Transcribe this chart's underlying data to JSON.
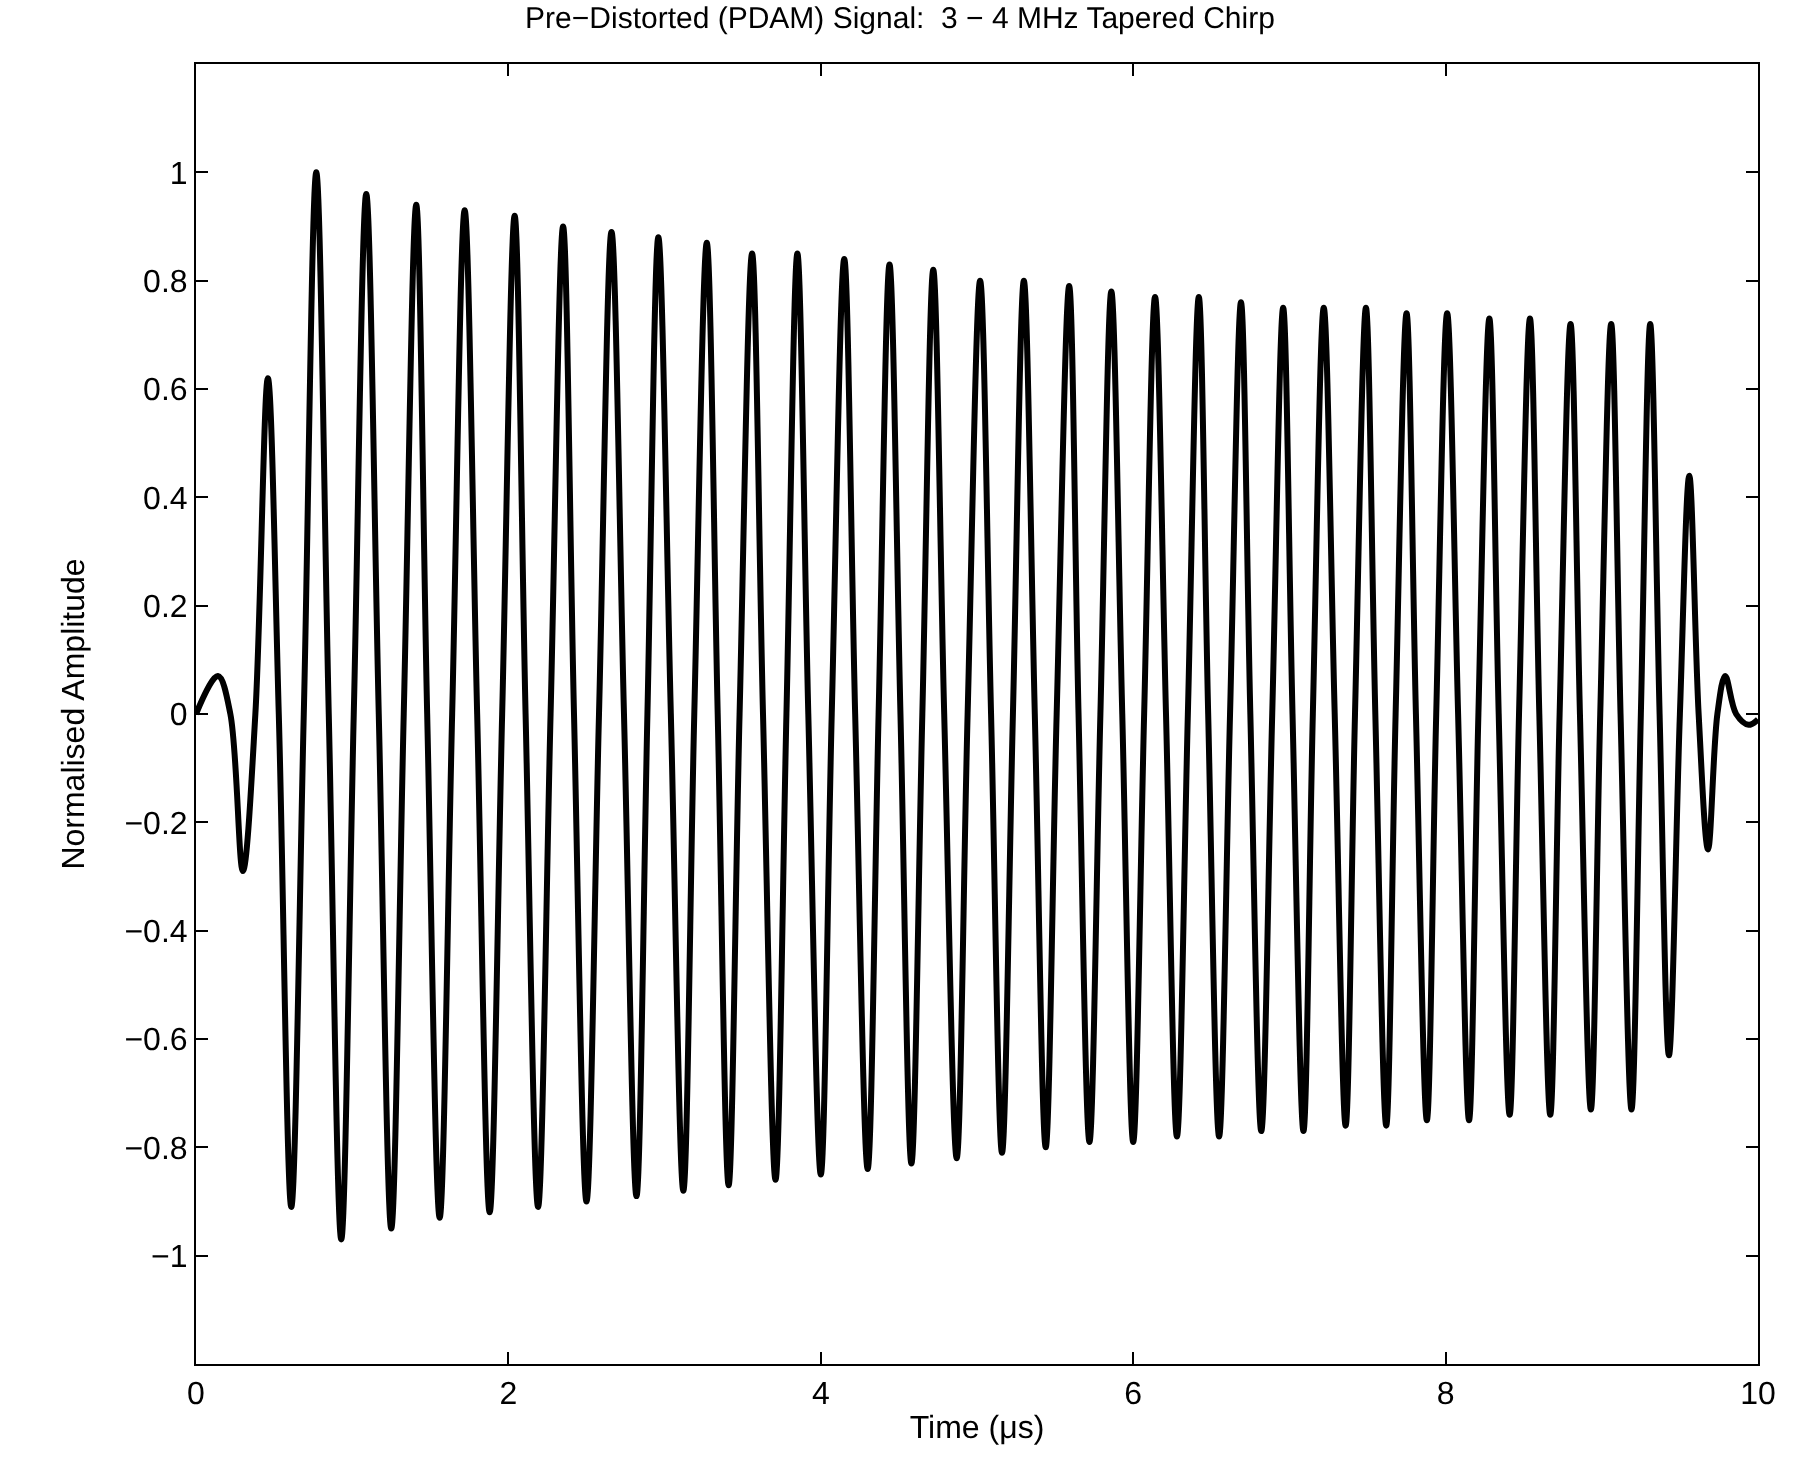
{
  "chart_data": {
    "type": "line",
    "title": "Pre−Distorted (PDAM) Signal:  3 − 4 MHz Tapered Chirp",
    "xlabel": "Time (μs)",
    "ylabel": "Normalised Amplitude",
    "x": [
      0,
      0.14,
      0.22,
      0.3,
      0.38,
      0.46,
      0.53,
      0.61,
      0.69,
      0.77,
      0.85,
      0.93,
      1.01,
      1.09,
      1.17,
      1.25,
      1.33,
      1.41,
      1.48,
      1.56,
      1.64,
      1.72,
      1.8,
      1.88,
      1.96,
      2.04,
      2.11,
      2.19,
      2.27,
      2.35,
      2.42,
      2.5,
      2.58,
      2.66,
      2.74,
      2.82,
      2.89,
      2.96,
      3.04,
      3.12,
      3.19,
      3.27,
      3.34,
      3.41,
      3.48,
      3.56,
      3.63,
      3.71,
      3.78,
      3.85,
      3.92,
      4.0,
      4.07,
      4.15,
      4.22,
      4.3,
      4.37,
      4.44,
      4.51,
      4.58,
      4.65,
      4.72,
      4.79,
      4.87,
      4.94,
      5.02,
      5.09,
      5.16,
      5.23,
      5.3,
      5.37,
      5.44,
      5.51,
      5.59,
      5.65,
      5.72,
      5.79,
      5.86,
      5.93,
      6.0,
      6.07,
      6.14,
      6.21,
      6.28,
      6.35,
      6.42,
      6.48,
      6.55,
      6.62,
      6.69,
      6.75,
      6.82,
      6.89,
      6.96,
      7.02,
      7.09,
      7.15,
      7.22,
      7.29,
      7.36,
      7.42,
      7.49,
      7.55,
      7.62,
      7.68,
      7.75,
      7.81,
      7.88,
      7.94,
      8.01,
      8.08,
      8.15,
      8.21,
      8.28,
      8.34,
      8.41,
      8.47,
      8.54,
      8.6,
      8.67,
      8.73,
      8.8,
      8.86,
      8.93,
      8.99,
      9.06,
      9.12,
      9.19,
      9.25,
      9.31,
      9.37,
      9.43,
      9.5,
      9.56,
      9.62,
      9.68,
      9.74,
      9.79,
      9.86,
      9.94,
      10
    ],
    "series": [
      {
        "color": "#000000",
        "values": [
          0,
          0.07,
          0,
          -0.29,
          0,
          0.62,
          0,
          -0.91,
          0,
          1.0,
          0,
          -0.97,
          0,
          0.96,
          0,
          -0.95,
          0,
          0.94,
          0,
          -0.93,
          0,
          0.93,
          0,
          -0.92,
          0,
          0.92,
          0,
          -0.91,
          0,
          0.9,
          0,
          -0.9,
          0,
          0.89,
          0,
          -0.89,
          0,
          0.88,
          0,
          -0.88,
          0,
          0.87,
          0,
          -0.87,
          0,
          0.85,
          0,
          -0.86,
          0,
          0.85,
          0,
          -0.85,
          0,
          0.84,
          0,
          -0.84,
          0,
          0.83,
          0,
          -0.83,
          0,
          0.82,
          0,
          -0.82,
          0,
          0.8,
          0,
          -0.81,
          0,
          0.8,
          0,
          -0.8,
          0,
          0.79,
          0,
          -0.79,
          0,
          0.78,
          0,
          -0.79,
          0,
          0.77,
          0,
          -0.78,
          0,
          0.77,
          0,
          -0.78,
          0,
          0.76,
          0,
          -0.77,
          0,
          0.75,
          0,
          -0.77,
          0,
          0.75,
          0,
          -0.76,
          0,
          0.75,
          0,
          -0.76,
          0,
          0.74,
          0,
          -0.75,
          0,
          0.74,
          0,
          -0.75,
          0,
          0.73,
          0,
          -0.74,
          0,
          0.73,
          0,
          -0.74,
          0,
          0.72,
          0,
          -0.73,
          0,
          0.72,
          0,
          -0.73,
          0,
          0.72,
          0,
          -0.63,
          0,
          0.44,
          0,
          -0.25,
          0,
          0.07,
          0,
          -0.02,
          -0.01
        ]
      }
    ],
    "xlim": [
      0,
      10
    ],
    "xticks": [
      0,
      2,
      4,
      6,
      8,
      10
    ],
    "ylim": [
      -1.2,
      1.2
    ],
    "yticks": [
      {
        "value": -1,
        "label": "−1"
      },
      {
        "value": -0.8,
        "label": "−0.8"
      },
      {
        "value": -0.6,
        "label": "−0.6"
      },
      {
        "value": -0.4,
        "label": "−0.4"
      },
      {
        "value": -0.2,
        "label": "−0.2"
      },
      0,
      0.2,
      0.4,
      0.6,
      0.8,
      1
    ],
    "marker": "none",
    "line_style": "solid"
  }
}
